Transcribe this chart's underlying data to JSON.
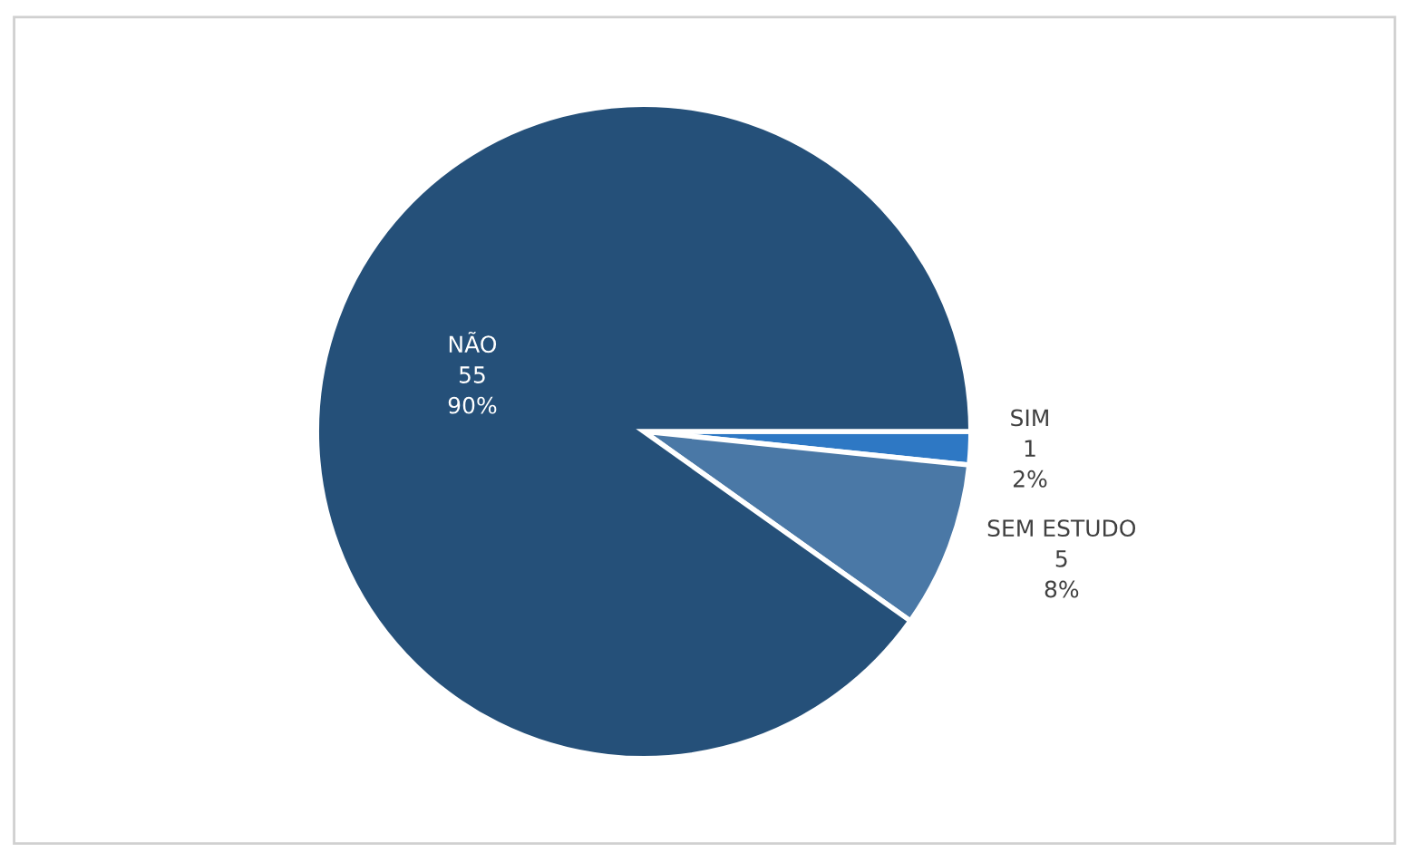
{
  "chart_data": {
    "type": "pie",
    "categories": [
      "SIM",
      "SEM ESTUDO",
      "NÃO"
    ],
    "values": [
      1,
      5,
      55
    ],
    "colors": [
      "#2e78c4",
      "#4a78a6",
      "#255079"
    ],
    "value_labels": [
      "1\n2%",
      "5\n8%",
      "55\n90%"
    ],
    "legend": false
  }
}
